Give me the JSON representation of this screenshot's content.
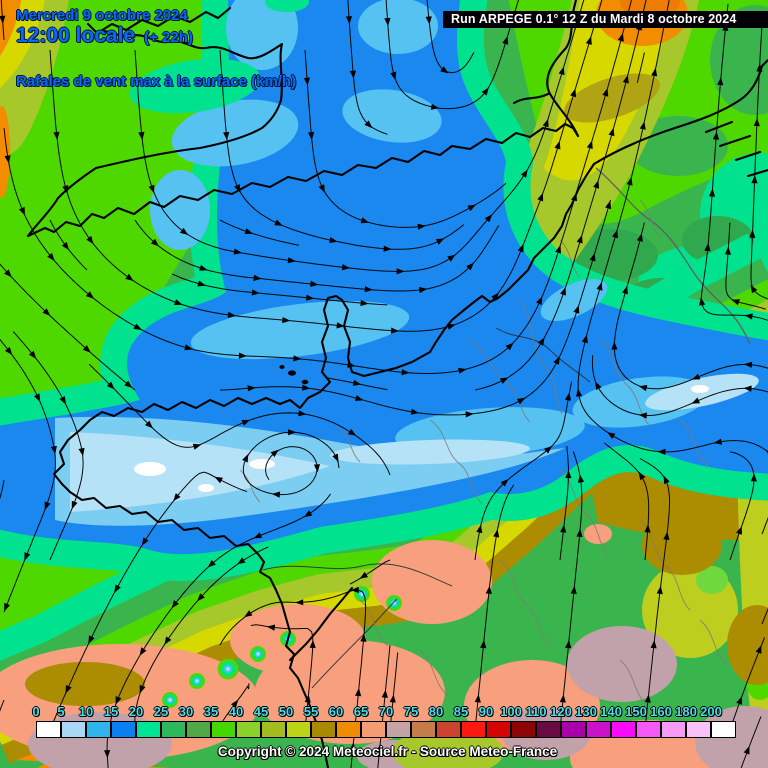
{
  "header": {
    "date_line": "Mercredi 9 octobre 2024",
    "time_line": "12:00 locale",
    "offset_label": "(+ 22h)",
    "subtitle": "Rafales de vent max à la surface (km/h)",
    "text_color": "#0968fa"
  },
  "run_banner": {
    "text": "Run ARPEGE 0.1° 12 Z du Mardi 8 octobre 2024"
  },
  "copyright_text": "Copyright © 2024 Meteociel.fr - Source Meteo-France",
  "legend": {
    "unit": "km/h",
    "tick_color": "#4fdce8",
    "tick_labels": [
      "0",
      "5",
      "10",
      "15",
      "20",
      "25",
      "30",
      "35",
      "40",
      "45",
      "50",
      "55",
      "60",
      "65",
      "70",
      "75",
      "80",
      "85",
      "90",
      "100",
      "110",
      "120",
      "130",
      "140",
      "150",
      "160",
      "180",
      "200"
    ],
    "box_colors": [
      "#ffffff",
      "#a8d8f4",
      "#30b4ec",
      "#0a80f0",
      "#00e494",
      "#2eb85e",
      "#50a848",
      "#44d800",
      "#8cd02c",
      "#a4bc20",
      "#bcd418",
      "#a88a00",
      "#f08c00",
      "#f49c74",
      "#c4a4a4",
      "#c47c48",
      "#cc4430",
      "#fa1a10",
      "#d40404",
      "#8c0404",
      "#6a0a42",
      "#aa00aa",
      "#ca12ca",
      "#fa0afa",
      "#f65af6",
      "#f79af7",
      "#f8c2f8",
      "#ffffff"
    ]
  },
  "map_palette": {
    "green": "#3ab54e",
    "bright_green": "#4fd800",
    "spring_green": "#00e28e",
    "sea_green": "#2fa84e",
    "yellow_green": "#a6c82a",
    "yellow_green2": "#bece1e",
    "yellow": "#d6d800",
    "olive": "#b0a414",
    "mustard": "#ac8c00",
    "orange": "#f28c00",
    "orange_deep": "#ee7c00",
    "salmon": "#f8a07e",
    "gray_pink": "#c2a2aa",
    "blue": "#1a88ee",
    "cyan": "#55c2f2",
    "light_cyan": "#7ccdf2",
    "pale": "#b6e2f8",
    "white": "#ffffff",
    "coast": "#000000",
    "border_gray": "#7c7c74",
    "river": "#25323c",
    "stream": "#000000"
  }
}
